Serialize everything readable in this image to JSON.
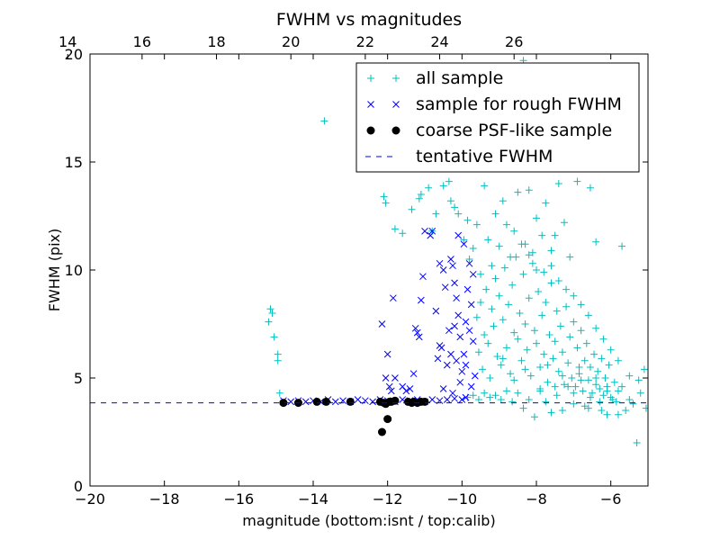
{
  "chart_data": {
    "type": "scatter",
    "title": "FWHM vs magnitudes",
    "xlabel": "magnitude (bottom:isnt / top:calib)",
    "ylabel": "FWHM (pix)",
    "xlim": [
      -20,
      -5
    ],
    "ylim": [
      0,
      20
    ],
    "x_ticks": [
      -20,
      -18,
      -16,
      -14,
      -12,
      -10,
      -8,
      -6
    ],
    "x_tick_labels": [
      "−20",
      "−18",
      "−16",
      "−14",
      "−12",
      "−10",
      "−8",
      "−6"
    ],
    "y_ticks": [
      0,
      5,
      10,
      15,
      20
    ],
    "y_tick_labels": [
      "0",
      "5",
      "10",
      "15",
      "20"
    ],
    "top_axis": {
      "offset": 34.6,
      "ticks": [
        14,
        16,
        18,
        20,
        22,
        24,
        26
      ],
      "tick_labels": [
        "14",
        "16",
        "18",
        "20",
        "22",
        "24",
        "26"
      ]
    },
    "grid": false,
    "legend_position": "top-right",
    "series": [
      {
        "name": "all sample",
        "marker": "plus",
        "color": "#00bfbf",
        "points": [
          [
            -15.2,
            7.6
          ],
          [
            -15.15,
            8.2
          ],
          [
            -15.1,
            8.0
          ],
          [
            -15.05,
            6.9
          ],
          [
            -14.95,
            6.1
          ],
          [
            -14.95,
            5.8
          ],
          [
            -14.9,
            4.3
          ],
          [
            -13.7,
            16.9
          ],
          [
            -12.1,
            13.4
          ],
          [
            -12.05,
            13.1
          ],
          [
            -11.8,
            11.9
          ],
          [
            -11.6,
            11.7
          ],
          [
            -11.35,
            12.8
          ],
          [
            -11.15,
            13.3
          ],
          [
            -11.1,
            13.5
          ],
          [
            -10.9,
            13.8
          ],
          [
            -10.8,
            11.8
          ],
          [
            -10.7,
            12.6
          ],
          [
            -10.5,
            13.9
          ],
          [
            -10.35,
            14.1
          ],
          [
            -10.3,
            13.2
          ],
          [
            -10.2,
            12.9
          ],
          [
            -10.1,
            12.6
          ],
          [
            -9.95,
            11.4
          ],
          [
            -9.85,
            12.3
          ],
          [
            -9.8,
            10.5
          ],
          [
            -9.7,
            11.0
          ],
          [
            -9.6,
            12.1
          ],
          [
            -9.5,
            9.8
          ],
          [
            -9.4,
            13.9
          ],
          [
            -9.3,
            11.4
          ],
          [
            -9.2,
            10.2
          ],
          [
            -9.1,
            12.6
          ],
          [
            -9.0,
            11.1
          ],
          [
            -8.9,
            13.2
          ],
          [
            -8.8,
            12.1
          ],
          [
            -8.7,
            10.6
          ],
          [
            -8.6,
            11.8
          ],
          [
            -8.5,
            13.6
          ],
          [
            -8.35,
            19.7
          ],
          [
            -8.3,
            11.2
          ],
          [
            -8.2,
            13.7
          ],
          [
            -8.1,
            10.8
          ],
          [
            -8.0,
            12.4
          ],
          [
            -7.85,
            11.6
          ],
          [
            -7.75,
            13.1
          ],
          [
            -7.6,
            10.9
          ],
          [
            -7.5,
            11.6
          ],
          [
            -7.4,
            14.0
          ],
          [
            -7.25,
            12.2
          ],
          [
            -7.1,
            10.6
          ],
          [
            -6.9,
            14.1
          ],
          [
            -6.55,
            13.8
          ],
          [
            -6.4,
            11.3
          ],
          [
            -5.7,
            11.1
          ],
          [
            -5.3,
            2.0
          ],
          [
            -5.2,
            4.3
          ],
          [
            -5.1,
            5.4
          ],
          [
            -5.05,
            3.6
          ],
          [
            -5.25,
            4.9
          ],
          [
            -5.4,
            3.8
          ],
          [
            -5.5,
            5.1
          ],
          [
            -5.7,
            4.6
          ],
          [
            -5.8,
            3.3
          ],
          [
            -5.95,
            4.0
          ],
          [
            -6.1,
            4.4
          ],
          [
            -6.25,
            3.5
          ],
          [
            -6.4,
            5.0
          ],
          [
            -6.55,
            4.1
          ],
          [
            -6.7,
            3.7
          ],
          [
            -6.85,
            5.5
          ],
          [
            -7.0,
            3.8
          ],
          [
            -7.15,
            4.6
          ],
          [
            -7.3,
            3.5
          ],
          [
            -7.45,
            4.2
          ],
          [
            -7.6,
            3.4
          ],
          [
            -7.75,
            3.9
          ],
          [
            -7.9,
            4.5
          ],
          [
            -8.05,
            3.2
          ],
          [
            -8.2,
            4.0
          ],
          [
            -8.35,
            3.6
          ],
          [
            -8.5,
            4.3
          ],
          [
            -8.65,
            3.9
          ],
          [
            -8.8,
            4.4
          ],
          [
            -8.95,
            4.0
          ],
          [
            -9.1,
            4.2
          ],
          [
            -9.25,
            4.1
          ],
          [
            -9.4,
            4.3
          ],
          [
            -9.55,
            4.0
          ],
          [
            -9.7,
            4.2
          ],
          [
            -9.85,
            4.1
          ],
          [
            -9.6,
            7.8
          ],
          [
            -9.55,
            6.2
          ],
          [
            -9.5,
            8.5
          ],
          [
            -9.45,
            5.4
          ],
          [
            -9.4,
            7.0
          ],
          [
            -9.35,
            9.1
          ],
          [
            -9.3,
            6.6
          ],
          [
            -9.25,
            5.0
          ],
          [
            -9.2,
            8.2
          ],
          [
            -9.15,
            7.4
          ],
          [
            -9.1,
            9.6
          ],
          [
            -9.05,
            6.0
          ],
          [
            -9.0,
            8.8
          ],
          [
            -8.95,
            5.6
          ],
          [
            -8.9,
            7.7
          ],
          [
            -8.85,
            10.1
          ],
          [
            -8.8,
            6.4
          ],
          [
            -8.75,
            8.4
          ],
          [
            -8.7,
            5.2
          ],
          [
            -8.65,
            9.3
          ],
          [
            -8.6,
            7.1
          ],
          [
            -8.55,
            10.6
          ],
          [
            -8.5,
            6.8
          ],
          [
            -8.45,
            8.0
          ],
          [
            -8.4,
            5.8
          ],
          [
            -8.35,
            9.8
          ],
          [
            -8.3,
            7.5
          ],
          [
            -8.25,
            6.3
          ],
          [
            -8.2,
            8.7
          ],
          [
            -8.15,
            5.1
          ],
          [
            -8.1,
            10.3
          ],
          [
            -8.05,
            7.2
          ],
          [
            -8.0,
            6.6
          ],
          [
            -7.95,
            9.0
          ],
          [
            -7.9,
            5.5
          ],
          [
            -7.85,
            7.9
          ],
          [
            -7.8,
            6.1
          ],
          [
            -7.75,
            8.5
          ],
          [
            -7.7,
            4.8
          ],
          [
            -7.65,
            7.0
          ],
          [
            -7.6,
            9.4
          ],
          [
            -7.55,
            5.9
          ],
          [
            -7.5,
            6.7
          ],
          [
            -7.45,
            8.1
          ],
          [
            -7.4,
            5.3
          ],
          [
            -7.35,
            7.4
          ],
          [
            -7.3,
            6.2
          ],
          [
            -7.25,
            4.7
          ],
          [
            -7.2,
            8.3
          ],
          [
            -7.15,
            5.7
          ],
          [
            -7.1,
            6.9
          ],
          [
            -7.05,
            5.0
          ],
          [
            -7.0,
            7.6
          ],
          [
            -6.95,
            4.6
          ],
          [
            -6.9,
            6.4
          ],
          [
            -6.85,
            5.2
          ],
          [
            -6.8,
            7.2
          ],
          [
            -6.75,
            4.4
          ],
          [
            -6.7,
            5.8
          ],
          [
            -6.65,
            6.6
          ],
          [
            -6.6,
            4.9
          ],
          [
            -6.55,
            5.5
          ],
          [
            -6.5,
            4.3
          ],
          [
            -6.45,
            6.1
          ],
          [
            -6.4,
            4.7
          ],
          [
            -6.35,
            5.3
          ],
          [
            -6.3,
            4.5
          ],
          [
            -6.25,
            5.9
          ],
          [
            -6.2,
            4.2
          ],
          [
            -6.15,
            5.0
          ],
          [
            -6.1,
            4.6
          ],
          [
            -6.05,
            5.6
          ],
          [
            -6.0,
            4.1
          ],
          [
            -5.9,
            4.8
          ],
          [
            -5.85,
            3.9
          ],
          [
            -5.8,
            4.4
          ],
          [
            -8.4,
            11.2
          ],
          [
            -8.2,
            10.7
          ],
          [
            -8.0,
            10.0
          ],
          [
            -7.8,
            9.9
          ],
          [
            -7.6,
            10.2
          ],
          [
            -7.4,
            9.5
          ],
          [
            -7.2,
            9.1
          ],
          [
            -7.0,
            8.8
          ],
          [
            -6.8,
            8.4
          ],
          [
            -6.6,
            7.9
          ],
          [
            -6.4,
            7.3
          ],
          [
            -6.2,
            6.8
          ],
          [
            -6.0,
            6.3
          ],
          [
            -5.8,
            5.8
          ],
          [
            -8.9,
            5.9
          ],
          [
            -8.6,
            4.9
          ],
          [
            -8.3,
            5.4
          ],
          [
            -7.9,
            4.4
          ],
          [
            -7.7,
            5.6
          ],
          [
            -7.5,
            4.6
          ],
          [
            -7.3,
            5.1
          ],
          [
            -7.0,
            4.3
          ],
          [
            -6.8,
            4.9
          ],
          [
            -6.6,
            3.6
          ],
          [
            -6.3,
            3.9
          ],
          [
            -6.1,
            3.3
          ],
          [
            -5.6,
            3.5
          ],
          [
            -5.5,
            4.0
          ]
        ]
      },
      {
        "name": "sample for rough FWHM",
        "marker": "x",
        "color": "#0000ff",
        "points": [
          [
            -14.8,
            3.95
          ],
          [
            -14.6,
            3.9
          ],
          [
            -14.4,
            3.95
          ],
          [
            -14.2,
            3.9
          ],
          [
            -14.0,
            3.95
          ],
          [
            -13.8,
            3.9
          ],
          [
            -13.6,
            4.0
          ],
          [
            -13.4,
            3.9
          ],
          [
            -13.2,
            3.95
          ],
          [
            -13.0,
            3.9
          ],
          [
            -12.8,
            4.0
          ],
          [
            -12.6,
            3.95
          ],
          [
            -12.4,
            3.9
          ],
          [
            -12.2,
            4.0
          ],
          [
            -12.0,
            3.95
          ],
          [
            -11.8,
            3.9
          ],
          [
            -11.6,
            4.0
          ],
          [
            -11.4,
            3.95
          ],
          [
            -11.2,
            4.0
          ],
          [
            -11.0,
            3.9
          ],
          [
            -10.8,
            4.0
          ],
          [
            -10.6,
            3.95
          ],
          [
            -10.4,
            4.0
          ],
          [
            -10.2,
            4.05
          ],
          [
            -10.0,
            4.0
          ],
          [
            -9.9,
            4.1
          ],
          [
            -12.15,
            7.5
          ],
          [
            -12.05,
            5.0
          ],
          [
            -12.0,
            6.1
          ],
          [
            -11.95,
            4.6
          ],
          [
            -11.9,
            4.4
          ],
          [
            -11.85,
            8.7
          ],
          [
            -11.8,
            5.0
          ],
          [
            -11.6,
            4.6
          ],
          [
            -11.5,
            4.4
          ],
          [
            -11.4,
            4.5
          ],
          [
            -11.3,
            5.2
          ],
          [
            -11.25,
            7.3
          ],
          [
            -11.2,
            7.1
          ],
          [
            -11.15,
            6.9
          ],
          [
            -11.1,
            8.6
          ],
          [
            -11.05,
            9.7
          ],
          [
            -11.0,
            11.8
          ],
          [
            -10.85,
            11.6
          ],
          [
            -10.8,
            11.8
          ],
          [
            -10.7,
            8.1
          ],
          [
            -10.6,
            6.5
          ],
          [
            -10.5,
            4.5
          ],
          [
            -10.4,
            5.6
          ],
          [
            -10.35,
            7.2
          ],
          [
            -10.3,
            10.5
          ],
          [
            -10.25,
            10.2
          ],
          [
            -10.2,
            9.4
          ],
          [
            -10.15,
            8.7
          ],
          [
            -10.1,
            7.9
          ],
          [
            -10.05,
            6.9
          ],
          [
            -10.0,
            5.3
          ],
          [
            -9.95,
            6.1
          ],
          [
            -9.9,
            7.6
          ],
          [
            -9.85,
            9.1
          ],
          [
            -9.8,
            10.3
          ],
          [
            -9.75,
            8.4
          ],
          [
            -9.7,
            6.7
          ],
          [
            -9.65,
            5.1
          ],
          [
            -10.1,
            11.6
          ],
          [
            -9.95,
            11.2
          ],
          [
            -10.6,
            10.3
          ],
          [
            -10.5,
            10.0
          ],
          [
            -10.45,
            9.2
          ],
          [
            -10.65,
            5.9
          ],
          [
            -10.55,
            6.4
          ],
          [
            -9.75,
            4.6
          ],
          [
            -10.25,
            4.3
          ],
          [
            -10.15,
            5.8
          ],
          [
            -10.05,
            4.8
          ],
          [
            -9.9,
            5.6
          ],
          [
            -10.3,
            6.1
          ],
          [
            -10.2,
            7.4
          ],
          [
            -9.8,
            7.2
          ],
          [
            -9.7,
            9.8
          ]
        ]
      },
      {
        "name": "coarse PSF-like sample",
        "marker": "dot",
        "color": "#000000",
        "points": [
          [
            -14.8,
            3.85
          ],
          [
            -14.4,
            3.85
          ],
          [
            -13.9,
            3.9
          ],
          [
            -13.65,
            3.9
          ],
          [
            -13.0,
            3.9
          ],
          [
            -12.2,
            3.9
          ],
          [
            -12.15,
            2.5
          ],
          [
            -12.1,
            3.85
          ],
          [
            -12.05,
            3.8
          ],
          [
            -12.0,
            3.1
          ],
          [
            -11.95,
            3.9
          ],
          [
            -11.9,
            3.9
          ],
          [
            -11.8,
            3.95
          ],
          [
            -11.45,
            3.9
          ],
          [
            -11.35,
            3.85
          ],
          [
            -11.3,
            3.9
          ],
          [
            -11.2,
            3.85
          ],
          [
            -11.1,
            3.9
          ],
          [
            -11.0,
            3.9
          ]
        ]
      },
      {
        "name": "tentative FWHM",
        "marker": "dashed-line",
        "color": "#0000ff",
        "value": 3.85
      }
    ]
  }
}
